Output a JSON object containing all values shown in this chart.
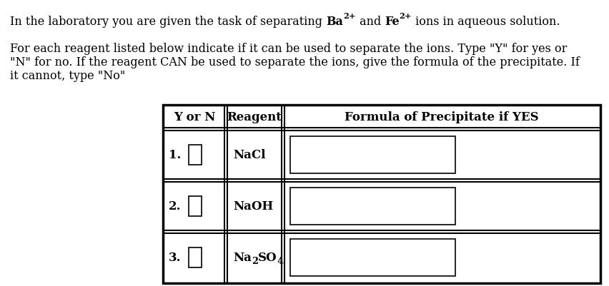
{
  "background_color": "#ffffff",
  "title_intro": "In the laboratory you are given the task of separating ",
  "title_ba": "Ba",
  "title_ba_sup": "2+",
  "title_mid": " and ",
  "title_fe": "Fe",
  "title_fe_sup": "2+",
  "title_end": " ions in aqueous solution.",
  "para2_line1": "For each reagent listed below indicate if it can be used to separate the ions. Type \"Y\" for yes or",
  "para2_line2": "\"N\" for no. If the reagent CAN be used to separate the ions, give the formula of the precipitate. If",
  "para2_line3": "it cannot, type \"No\"",
  "col_header1": "Y or N",
  "col_header2": "Reagent",
  "col_header3": "Formula of Precipitate if YES",
  "rows": [
    {
      "num": "1.",
      "reagent": "NaCl"
    },
    {
      "num": "2.",
      "reagent": "NaOH"
    },
    {
      "num": "3.",
      "reagent_na2so4": true
    }
  ],
  "font_size_body": 11.5,
  "font_size_table": 12.0,
  "font_family": "DejaVu Serif"
}
